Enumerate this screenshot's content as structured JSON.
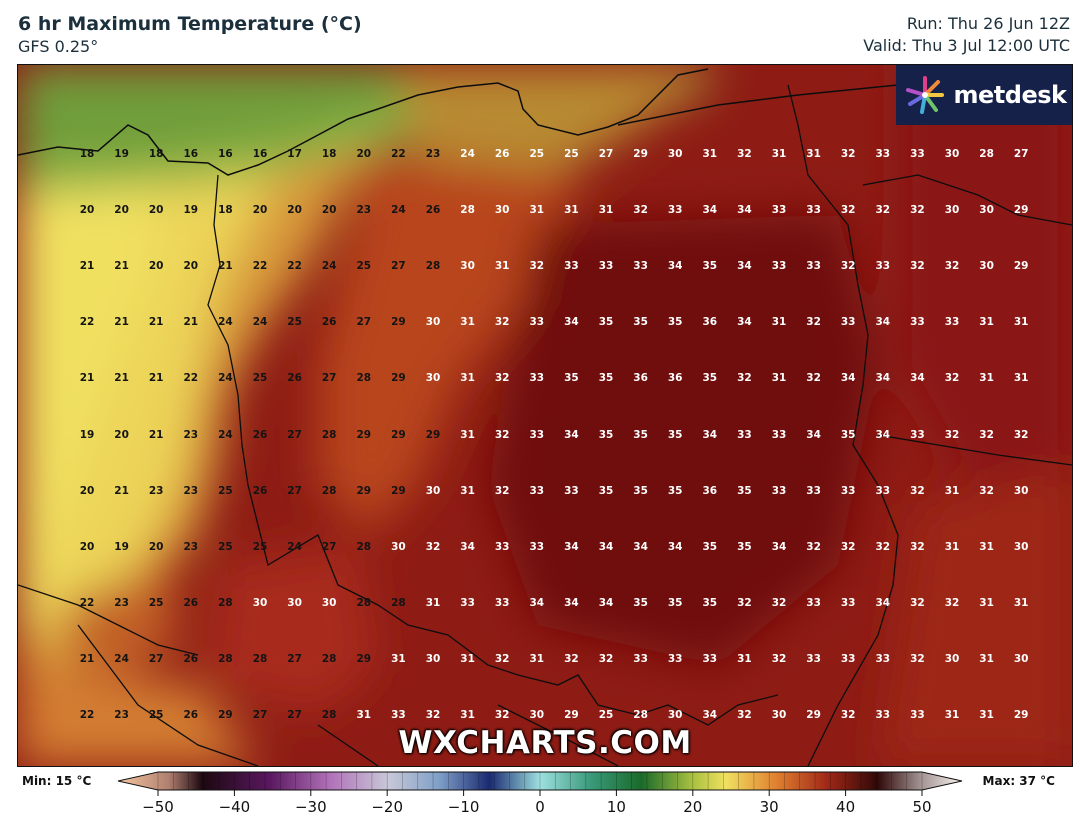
{
  "header": {
    "title": "6 hr Maximum Temperature (°C)",
    "model": "GFS 0.25°",
    "run": "Run: Thu 26 Jun 12Z",
    "valid": "Valid: Thu 3 Jul 12:00 UTC"
  },
  "brand": {
    "logo_text": "metdesk",
    "watermark": "WXCHARTS.COM"
  },
  "colorbar": {
    "min_label": "Min: 15 °C",
    "max_label": "Max: 37 °C",
    "ticks": [
      "−50",
      "−40",
      "−30",
      "−20",
      "−10",
      "0",
      "10",
      "20",
      "30",
      "40",
      "50"
    ],
    "range": [
      -50,
      50
    ]
  },
  "grid": {
    "rows": [
      [
        "18",
        "19",
        "18",
        "16",
        "16",
        "16",
        "17",
        "18",
        "20",
        "22",
        "23",
        "24",
        "26",
        "25",
        "25",
        "27",
        "29",
        "30",
        "31",
        "32",
        "31",
        "31",
        "32",
        "33",
        "33",
        "30",
        "28",
        "27"
      ],
      [
        "20",
        "20",
        "20",
        "19",
        "18",
        "20",
        "20",
        "20",
        "23",
        "24",
        "26",
        "28",
        "30",
        "31",
        "31",
        "31",
        "32",
        "33",
        "34",
        "34",
        "33",
        "33",
        "32",
        "32",
        "32",
        "30",
        "30",
        "29"
      ],
      [
        "21",
        "21",
        "20",
        "20",
        "21",
        "22",
        "22",
        "24",
        "25",
        "27",
        "28",
        "30",
        "31",
        "32",
        "33",
        "33",
        "33",
        "34",
        "35",
        "34",
        "33",
        "33",
        "32",
        "33",
        "32",
        "32",
        "30",
        "29"
      ],
      [
        "22",
        "21",
        "21",
        "21",
        "24",
        "24",
        "25",
        "26",
        "27",
        "29",
        "30",
        "31",
        "32",
        "33",
        "34",
        "35",
        "35",
        "35",
        "36",
        "34",
        "31",
        "32",
        "33",
        "34",
        "33",
        "33",
        "31",
        "31"
      ],
      [
        "21",
        "21",
        "21",
        "22",
        "24",
        "25",
        "26",
        "27",
        "28",
        "29",
        "30",
        "31",
        "32",
        "33",
        "35",
        "35",
        "36",
        "36",
        "35",
        "32",
        "31",
        "32",
        "34",
        "34",
        "34",
        "32",
        "31",
        "31"
      ],
      [
        "19",
        "20",
        "21",
        "23",
        "24",
        "26",
        "27",
        "28",
        "29",
        "29",
        "29",
        "31",
        "32",
        "33",
        "34",
        "35",
        "35",
        "35",
        "34",
        "33",
        "33",
        "34",
        "35",
        "34",
        "33",
        "32",
        "32",
        "32"
      ],
      [
        "20",
        "21",
        "23",
        "23",
        "25",
        "26",
        "27",
        "28",
        "29",
        "29",
        "30",
        "31",
        "32",
        "33",
        "33",
        "35",
        "35",
        "35",
        "36",
        "35",
        "33",
        "33",
        "33",
        "33",
        "32",
        "31",
        "32",
        "30"
      ],
      [
        "20",
        "19",
        "20",
        "23",
        "25",
        "25",
        "24",
        "27",
        "28",
        "30",
        "32",
        "34",
        "33",
        "33",
        "34",
        "34",
        "34",
        "34",
        "35",
        "35",
        "34",
        "32",
        "32",
        "32",
        "32",
        "31",
        "31",
        "30"
      ],
      [
        "22",
        "23",
        "25",
        "26",
        "28",
        "30",
        "30",
        "30",
        "28",
        "28",
        "31",
        "33",
        "33",
        "34",
        "34",
        "34",
        "35",
        "35",
        "35",
        "32",
        "32",
        "33",
        "33",
        "34",
        "32",
        "32",
        "31",
        "31"
      ],
      [
        "21",
        "24",
        "27",
        "26",
        "28",
        "28",
        "27",
        "28",
        "29",
        "31",
        "30",
        "31",
        "32",
        "31",
        "32",
        "32",
        "33",
        "33",
        "33",
        "31",
        "32",
        "33",
        "33",
        "33",
        "32",
        "30",
        "31",
        "30"
      ],
      [
        "22",
        "23",
        "25",
        "26",
        "29",
        "27",
        "27",
        "28",
        "31",
        "33",
        "32",
        "31",
        "32",
        "30",
        "29",
        "25",
        "28",
        "30",
        "34",
        "32",
        "30",
        "29",
        "32",
        "33",
        "33",
        "31",
        "31",
        "29"
      ]
    ]
  }
}
